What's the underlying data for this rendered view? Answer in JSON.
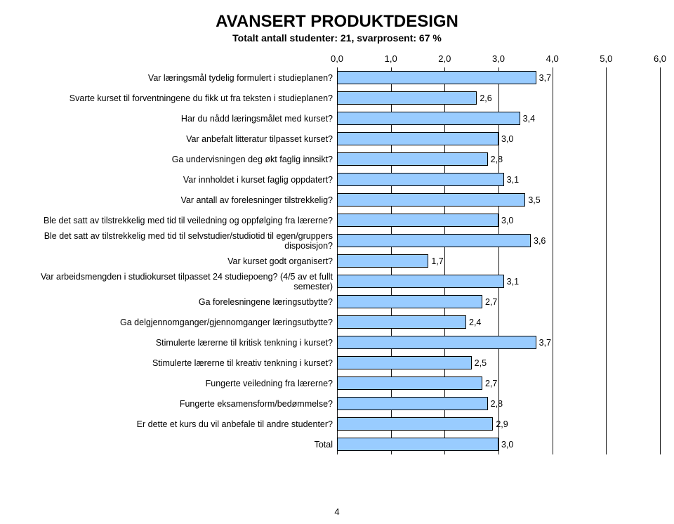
{
  "title": "AVANSERT PRODUKTDESIGN",
  "subtitle": "Totalt antall studenter: 21, svarprosent: 67 %",
  "page_number": "4",
  "chart": {
    "type": "bar-horizontal",
    "x_axis": {
      "min": 0.0,
      "max": 6.0,
      "ticks": [
        0.0,
        1.0,
        2.0,
        3.0,
        4.0,
        5.0,
        6.0
      ],
      "tick_labels": [
        "0,0",
        "1,0",
        "2,0",
        "3,0",
        "4,0",
        "5,0",
        "6,0"
      ]
    },
    "bar_fill": "#99ccff",
    "bar_border": "#000000",
    "gridline_color": "#000000",
    "background_color": "#ffffff",
    "label_fontsize": 12.5,
    "value_fontsize": 12.5,
    "rows": [
      {
        "label": "Var læringsmål tydelig formulert i studieplanen?",
        "value": 3.7,
        "value_label": "3,7"
      },
      {
        "label": "Svarte kurset til forventningene du fikk ut fra teksten i studieplanen?",
        "value": 2.6,
        "value_label": "2,6"
      },
      {
        "label": "Har du nådd læringsmålet med kurset?",
        "value": 3.4,
        "value_label": "3,4"
      },
      {
        "label": "Var anbefalt litteratur tilpasset kurset?",
        "value": 3.0,
        "value_label": "3,0"
      },
      {
        "label": "Ga undervisningen deg økt faglig innsikt?",
        "value": 2.8,
        "value_label": "2,8"
      },
      {
        "label": "Var innholdet i kurset faglig oppdatert?",
        "value": 3.1,
        "value_label": "3,1"
      },
      {
        "label": "Var antall av forelesninger tilstrekkelig?",
        "value": 3.5,
        "value_label": "3,5"
      },
      {
        "label": "Ble det satt av tilstrekkelig med tid til veiledning og oppfølging fra lærerne?",
        "value": 3.0,
        "value_label": "3,0"
      },
      {
        "label": "Ble det satt av tilstrekkelig med tid til selvstudier/studiotid til egen/gruppers disposisjon?",
        "value": 3.6,
        "value_label": "3,6"
      },
      {
        "label": "Var kurset godt organisert?",
        "value": 1.7,
        "value_label": "1,7"
      },
      {
        "label": "Var arbeidsmengden i studiokurset tilpasset 24 studiepoeng? (4/5 av et fullt semester)",
        "value": 3.1,
        "value_label": "3,1"
      },
      {
        "label": "Ga forelesningene læringsutbytte?",
        "value": 2.7,
        "value_label": "2,7"
      },
      {
        "label": "Ga delgjennomganger/gjennomganger læringsutbytte?",
        "value": 2.4,
        "value_label": "2,4"
      },
      {
        "label": "Stimulerte lærerne til kritisk tenkning i kurset?",
        "value": 3.7,
        "value_label": "3,7"
      },
      {
        "label": "Stimulerte lærerne til kreativ tenkning i kurset?",
        "value": 2.5,
        "value_label": "2,5"
      },
      {
        "label": "Fungerte veiledning fra lærerne?",
        "value": 2.7,
        "value_label": "2,7"
      },
      {
        "label": "Fungerte eksamensform/bedømmelse?",
        "value": 2.8,
        "value_label": "2,8"
      },
      {
        "label": "Er dette et kurs du vil anbefale til andre studenter?",
        "value": 2.9,
        "value_label": "2,9"
      },
      {
        "label": "Total",
        "value": 3.0,
        "value_label": "3,0"
      }
    ]
  }
}
